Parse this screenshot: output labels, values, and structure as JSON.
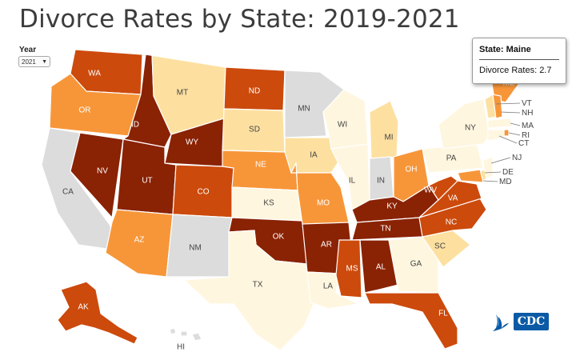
{
  "title": "Divorce Rates by State: 2019-2021",
  "year_filter": {
    "label": "Year",
    "selected": "2021",
    "chevron_icon": "chevron-down-icon"
  },
  "tooltip": {
    "state_text": "State: Maine",
    "rate_text": "Divorce Rates: 2.7"
  },
  "colors": {
    "no_data": "#dcdcdc",
    "lightest": "#fff6df",
    "light": "#fde0a0",
    "medium": "#f79639",
    "dark": "#cc4a0c",
    "darkest": "#8a2204"
  },
  "states": [
    {
      "abbr": "WA",
      "level": "dark"
    },
    {
      "abbr": "OR",
      "level": "medium"
    },
    {
      "abbr": "CA",
      "level": "no_data"
    },
    {
      "abbr": "NV",
      "level": "darkest"
    },
    {
      "abbr": "ID",
      "level": "darkest"
    },
    {
      "abbr": "MT",
      "level": "light"
    },
    {
      "abbr": "WY",
      "level": "darkest"
    },
    {
      "abbr": "UT",
      "level": "darkest"
    },
    {
      "abbr": "CO",
      "level": "dark"
    },
    {
      "abbr": "AZ",
      "level": "medium"
    },
    {
      "abbr": "NM",
      "level": "no_data"
    },
    {
      "abbr": "ND",
      "level": "dark"
    },
    {
      "abbr": "SD",
      "level": "light"
    },
    {
      "abbr": "NE",
      "level": "medium"
    },
    {
      "abbr": "KS",
      "level": "lightest"
    },
    {
      "abbr": "OK",
      "level": "darkest"
    },
    {
      "abbr": "TX",
      "level": "lightest"
    },
    {
      "abbr": "MN",
      "level": "no_data"
    },
    {
      "abbr": "IA",
      "level": "light"
    },
    {
      "abbr": "MO",
      "level": "medium"
    },
    {
      "abbr": "AR",
      "level": "darkest"
    },
    {
      "abbr": "LA",
      "level": "lightest"
    },
    {
      "abbr": "WI",
      "level": "lightest"
    },
    {
      "abbr": "IL",
      "level": "lightest"
    },
    {
      "abbr": "MI",
      "level": "light"
    },
    {
      "abbr": "IN",
      "level": "no_data"
    },
    {
      "abbr": "OH",
      "level": "medium"
    },
    {
      "abbr": "KY",
      "level": "darkest"
    },
    {
      "abbr": "TN",
      "level": "darkest"
    },
    {
      "abbr": "MS",
      "level": "dark"
    },
    {
      "abbr": "AL",
      "level": "darkest"
    },
    {
      "abbr": "GA",
      "level": "lightest"
    },
    {
      "abbr": "FL",
      "level": "dark"
    },
    {
      "abbr": "SC",
      "level": "light"
    },
    {
      "abbr": "NC",
      "level": "dark"
    },
    {
      "abbr": "VA",
      "level": "dark"
    },
    {
      "abbr": "WV",
      "level": "dark"
    },
    {
      "abbr": "PA",
      "level": "lightest"
    },
    {
      "abbr": "NY",
      "level": "lightest"
    },
    {
      "abbr": "ME",
      "level": "medium"
    },
    {
      "abbr": "AK",
      "level": "dark"
    },
    {
      "abbr": "HI",
      "level": "no_data"
    },
    {
      "abbr": "VT",
      "level": "light"
    },
    {
      "abbr": "NH",
      "level": "medium"
    },
    {
      "abbr": "MA",
      "level": "lightest"
    },
    {
      "abbr": "RI",
      "level": "medium"
    },
    {
      "abbr": "CT",
      "level": "lightest"
    },
    {
      "abbr": "NJ",
      "level": "lightest"
    },
    {
      "abbr": "DE",
      "level": "light"
    },
    {
      "abbr": "MD",
      "level": "medium"
    }
  ],
  "logo": {
    "text": "CDC",
    "icon": "hhs-eagle-icon"
  }
}
